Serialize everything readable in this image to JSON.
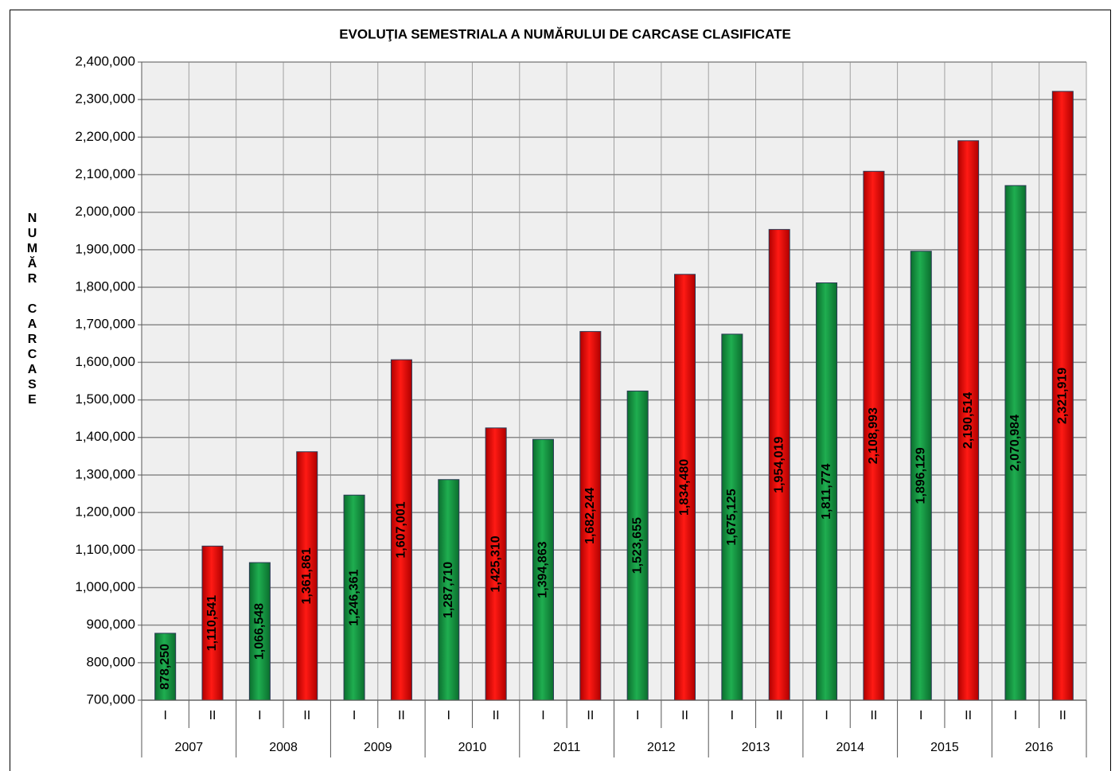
{
  "chart_data": {
    "type": "bar",
    "title": "EVOLUŢIA SEMESTRIALA  A NUMĂRULUI DE CARCASE CLASIFICATE",
    "y_label": "NUMĂR CARCASE",
    "categories": [
      "2007",
      "2008",
      "2009",
      "2010",
      "2011",
      "2012",
      "2013",
      "2014",
      "2015",
      "2016"
    ],
    "series": [
      {
        "name": "I",
        "color": "#169443",
        "values": [
          878250,
          1066548,
          1246361,
          1287710,
          1394863,
          1523655,
          1675125,
          1811774,
          1896129,
          2070984
        ],
        "value_labels": [
          "878,250",
          "1,066,548",
          "1,246,361",
          "1,287,710",
          "1,394,863",
          "1,523,655",
          "1,675,125",
          "1,811,774",
          "1,896,129",
          "2,070,984"
        ]
      },
      {
        "name": "II",
        "color": "#e8100c",
        "values": [
          1110541,
          1361861,
          1607001,
          1425310,
          1682244,
          1834480,
          1954019,
          2108993,
          2190514,
          2321919
        ],
        "value_labels": [
          "1,110,541",
          "1,361,861",
          "1,607,001",
          "1,425,310",
          "1,682,244",
          "1,834,480",
          "1,954,019",
          "2,108,993",
          "2,190,514",
          "2,321,919"
        ]
      }
    ],
    "ylim": [
      700000,
      2400000
    ],
    "yticks": [
      {
        "value": 700000,
        "label": "700,000"
      },
      {
        "value": 800000,
        "label": "800,000"
      },
      {
        "value": 900000,
        "label": "900,000"
      },
      {
        "value": 1000000,
        "label": "1,000,000"
      },
      {
        "value": 1100000,
        "label": "1,100,000"
      },
      {
        "value": 1200000,
        "label": "1,200,000"
      },
      {
        "value": 1300000,
        "label": "1,300,000"
      },
      {
        "value": 1400000,
        "label": "1,400,000"
      },
      {
        "value": 1500000,
        "label": "1,500,000"
      },
      {
        "value": 1600000,
        "label": "1,600,000"
      },
      {
        "value": 1700000,
        "label": "1,700,000"
      },
      {
        "value": 1800000,
        "label": "1,800,000"
      },
      {
        "value": 1900000,
        "label": "1,900,000"
      },
      {
        "value": 2000000,
        "label": "2,000,000"
      },
      {
        "value": 2100000,
        "label": "2,100,000"
      },
      {
        "value": 2200000,
        "label": "2,200,000"
      },
      {
        "value": 2300000,
        "label": "2,300,000"
      },
      {
        "value": 2400000,
        "label": "2,400,000"
      }
    ],
    "grid": true
  }
}
